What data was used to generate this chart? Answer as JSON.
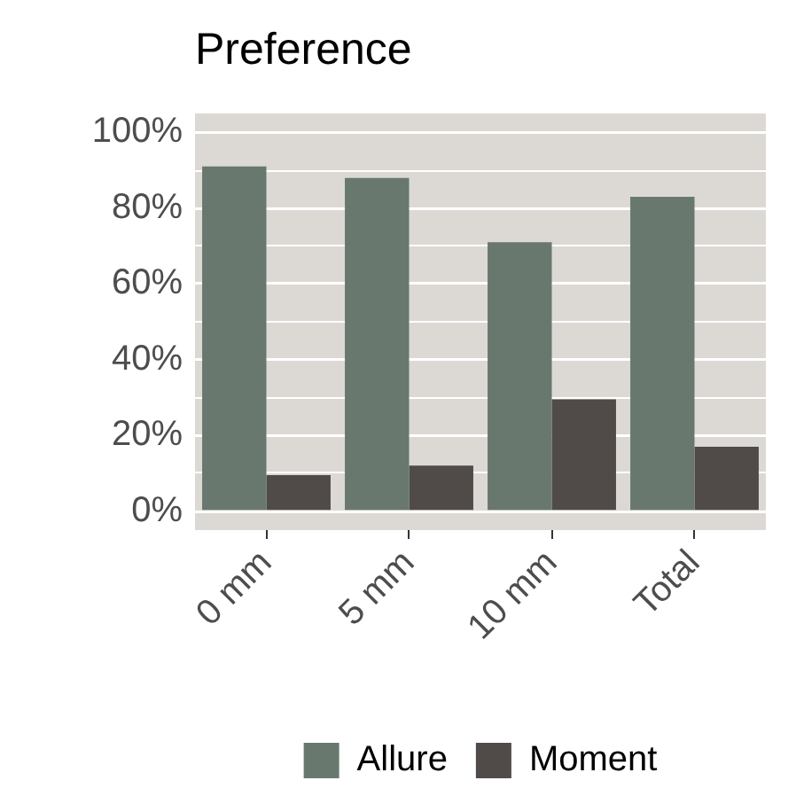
{
  "chart_data": {
    "type": "bar",
    "title": "Preference",
    "categories": [
      "0 mm",
      "5 mm",
      "10 mm",
      "Total"
    ],
    "series": [
      {
        "name": "Allure",
        "color": "#68786e",
        "values": [
          91,
          88,
          71,
          83
        ]
      },
      {
        "name": "Moment",
        "color": "#504b48",
        "values": [
          9.5,
          12,
          29.5,
          17
        ]
      }
    ],
    "ylim": [
      -5,
      105
    ],
    "yticks": [
      {
        "value": 0,
        "label": "0%"
      },
      {
        "value": 10,
        "label": null
      },
      {
        "value": 20,
        "label": "20%"
      },
      {
        "value": 30,
        "label": null
      },
      {
        "value": 40,
        "label": "40%"
      },
      {
        "value": 50,
        "label": null
      },
      {
        "value": 60,
        "label": "60%"
      },
      {
        "value": 70,
        "label": null
      },
      {
        "value": 80,
        "label": "80%"
      },
      {
        "value": 90,
        "label": null
      },
      {
        "value": 100,
        "label": "100%"
      }
    ],
    "grid": "y",
    "legend": "bottom"
  }
}
